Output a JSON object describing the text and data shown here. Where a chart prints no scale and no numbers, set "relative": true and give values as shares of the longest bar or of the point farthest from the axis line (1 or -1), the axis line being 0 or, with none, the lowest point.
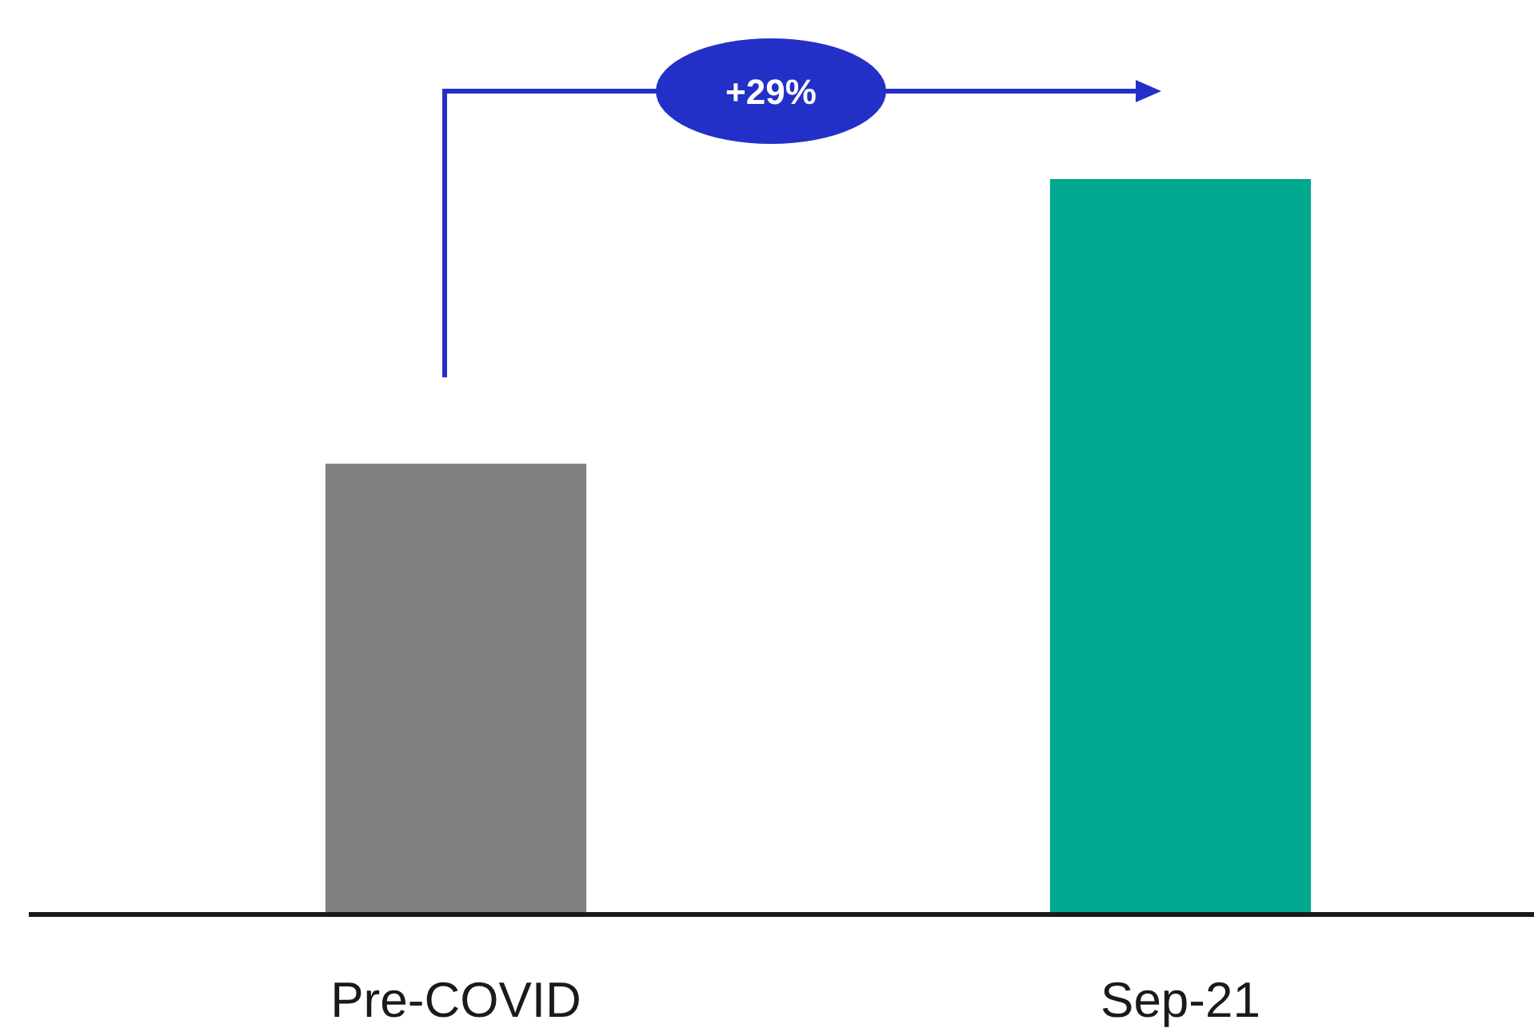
{
  "chart_data": {
    "type": "bar",
    "relative": true,
    "categories": [
      "Pre-COVID",
      "Sep-21"
    ],
    "values": [
      0.613,
      1
    ],
    "colors": [
      "#808080",
      "#00a88f"
    ],
    "annotations": [
      "+29%"
    ]
  }
}
